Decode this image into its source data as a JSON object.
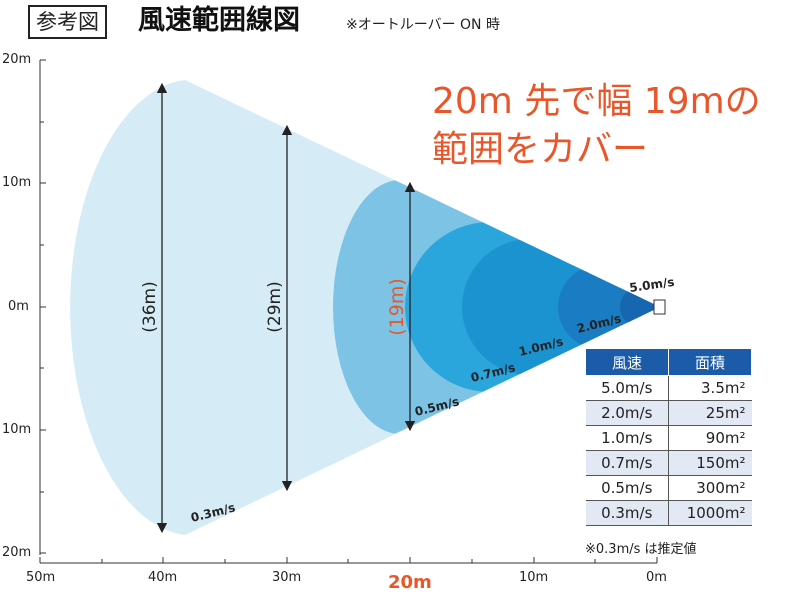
{
  "header": {
    "ref_label": "参考図",
    "title": "風速範囲線図",
    "note": "※オートルーバー ON 時"
  },
  "headline": {
    "line1": "20m 先で幅 19mの",
    "line2": "範囲をカバー"
  },
  "y_axis_labels": [
    "20m",
    "10m",
    "0m",
    "10m",
    "20m"
  ],
  "x_axis_labels": [
    "50m",
    "40m",
    "30m",
    "20m",
    "10m",
    "0m"
  ],
  "widths": [
    {
      "label": "(36m)"
    },
    {
      "label": "(29m)"
    },
    {
      "label": "(19m)"
    }
  ],
  "speed_labels": [
    "5.0m/s",
    "2.0m/s",
    "1.0m/s",
    "0.7m/s",
    "0.5m/s",
    "0.3m/s"
  ],
  "table": {
    "headers": [
      "風速",
      "面積"
    ],
    "rows": [
      {
        "speed": "5.0m/s",
        "area": "3.5m²"
      },
      {
        "speed": "2.0m/s",
        "area": "25m²"
      },
      {
        "speed": "1.0m/s",
        "area": "90m²"
      },
      {
        "speed": "0.7m/s",
        "area": "150m²"
      },
      {
        "speed": "0.5m/s",
        "area": "300m²"
      },
      {
        "speed": "0.3m/s",
        "area": "1000m²"
      }
    ]
  },
  "footnote": "※0.3m/s は推定値",
  "colors": {
    "accent": "#e8562a",
    "table_header": "#1c5ba8"
  }
}
